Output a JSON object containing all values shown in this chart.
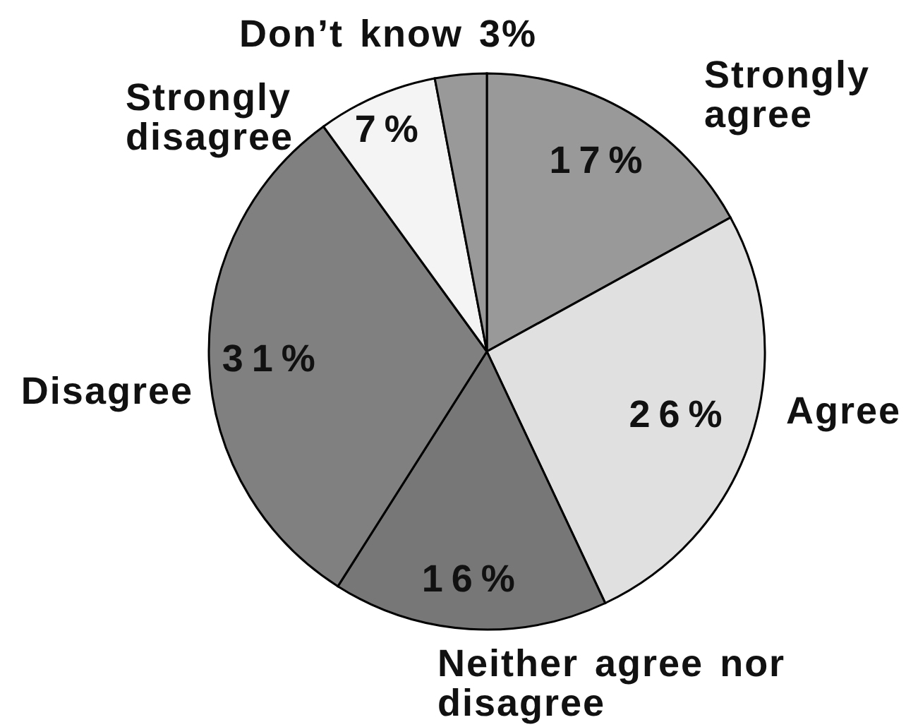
{
  "chart_data": {
    "type": "pie",
    "categories": [
      "Strongly agree",
      "Agree",
      "Neither agree nor disagree",
      "Disagree",
      "Strongly disagree",
      "Don’t know"
    ],
    "values": [
      17,
      26,
      16,
      31,
      7,
      3
    ],
    "colors": [
      "#999999",
      "#e0e0e0",
      "#777777",
      "#808080",
      "#f4f4f4",
      "#999999"
    ],
    "value_labels": [
      "17%",
      "26%",
      "16%",
      "31%",
      "7%",
      "3%"
    ]
  }
}
